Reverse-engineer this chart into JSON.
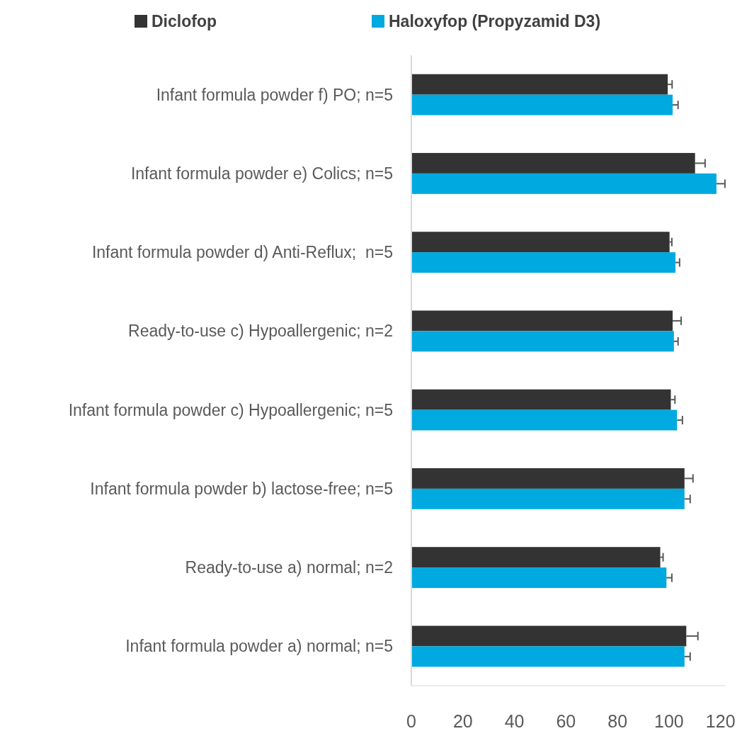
{
  "chart_data": {
    "type": "bar",
    "orientation": "horizontal",
    "categories": [
      "Infant formula powder f) PO; n=5",
      "Infant formula powder e) Colics; n=5",
      "Infant formula powder d) Anti-Reflux;  n=5",
      "Ready-to-use c) Hypoallergenic; n=2",
      "Infant formula powder c) Hypoallergenic; n=5",
      "Infant formula powder b) lactose-free; n=5",
      "Ready-to-use a) normal; n=2",
      "Infant formula powder a) normal; n=5"
    ],
    "series": [
      {
        "name": "Diclofop",
        "color": "#333333",
        "values": [
          99.5,
          110.1,
          100.2,
          101.4,
          100.7,
          106.0,
          96.6,
          106.7
        ],
        "errors": [
          [
            99.5,
            101.2
          ],
          [
            110.1,
            114.0
          ],
          [
            100.2,
            101.1
          ],
          [
            101.4,
            104.7
          ],
          [
            100.7,
            102.3
          ],
          [
            106.0,
            109.3
          ],
          [
            96.6,
            97.7
          ],
          [
            106.7,
            111.2
          ]
        ]
      },
      {
        "name": "Haloxyfop (Propyzamid D3)",
        "color": "#00a9e0",
        "values": [
          101.4,
          118.4,
          102.5,
          101.9,
          103.1,
          106.0,
          99.0,
          106.0
        ],
        "errors": [
          [
            101.4,
            103.5
          ],
          [
            118.4,
            121.7
          ],
          [
            102.5,
            104.1
          ],
          [
            101.9,
            103.5
          ],
          [
            103.1,
            105.2
          ],
          [
            106.0,
            108.2
          ],
          [
            99.0,
            101.1
          ],
          [
            106.0,
            108.2
          ]
        ]
      }
    ],
    "xlim": [
      0,
      122
    ],
    "xticks": [
      0,
      20,
      40,
      60,
      80,
      100,
      120
    ],
    "grid": false,
    "legend": "top"
  }
}
